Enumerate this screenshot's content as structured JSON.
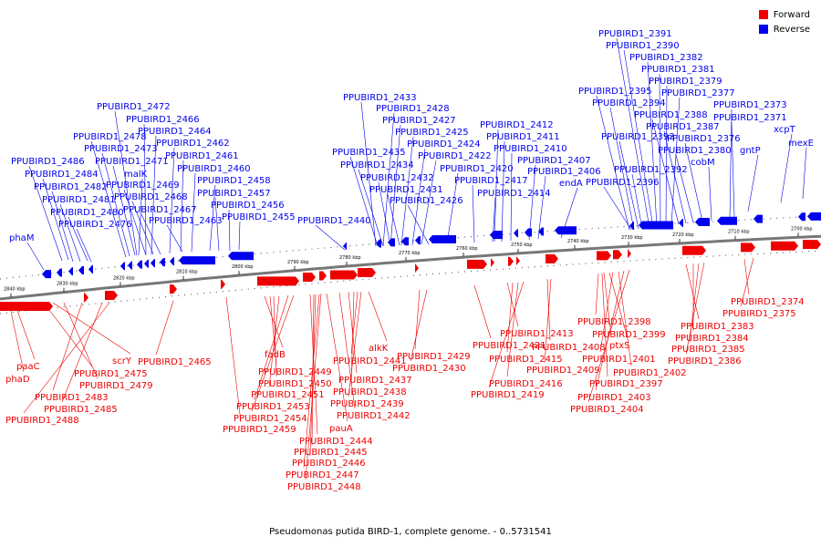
{
  "legend": {
    "forward_label": "Forward",
    "reverse_label": "Reverse",
    "forward_color": "#ee0000",
    "reverse_color": "#0000ee"
  },
  "caption": "Pseudomonas putida BIRD-1, complete genome. - 0..5731541",
  "ticks": [
    "2840 kbp",
    "2830 kbp",
    "2820 kbp",
    "2810 kbp",
    "2800 kbp",
    "2790 kbp",
    "2780 kbp",
    "2770 kbp",
    "2760 kbp",
    "2750 kbp",
    "2740 kbp",
    "2730 kbp",
    "2720 kbp",
    "2710 kbp",
    "2700 kbp"
  ],
  "reverse_genes": [
    "phaM",
    "PPUBIRD1_2486",
    "PPUBIRD1_2484",
    "PPUBIRD1_2482",
    "PPUBIRD1_2481",
    "PPUBIRD1_2480",
    "PPUBIRD1_2476",
    "PPUBIRD1_2478",
    "PPUBIRD1_2473",
    "PPUBIRD1_2471",
    "malK",
    "PPUBIRD1_2469",
    "PPUBIRD1_2468",
    "PPUBIRD1_2467",
    "PPUBIRD1_2472",
    "PPUBIRD1_2466",
    "PPUBIRD1_2464",
    "PPUBIRD1_2462",
    "PPUBIRD1_2461",
    "PPUBIRD1_2460",
    "PPUBIRD1_2458",
    "PPUBIRD1_2457",
    "PPUBIRD1_2456",
    "PPUBIRD1_2455",
    "PPUBIRD1_2463",
    "PPUBIRD1_2440",
    "PPUBIRD1_2433",
    "PPUBIRD1_2428",
    "PPUBIRD1_2427",
    "PPUBIRD1_2425",
    "PPUBIRD1_2424",
    "PPUBIRD1_2422",
    "PPUBIRD1_2435",
    "PPUBIRD1_2434",
    "PPUBIRD1_2432",
    "PPUBIRD1_2431",
    "PPUBIRD1_2426",
    "PPUBIRD1_2420",
    "PPUBIRD1_2417",
    "PPUBIRD1_2414",
    "PPUBIRD1_2412",
    "PPUBIRD1_2411",
    "PPUBIRD1_2410",
    "PPUBIRD1_2407",
    "PPUBIRD1_2406",
    "endA",
    "PPUBIRD1_2395",
    "PPUBIRD1_2394",
    "PPUBIRD1_2393",
    "PPUBIRD1_2392",
    "PPUBIRD1_2396",
    "PPUBIRD1_2391",
    "PPUBIRD1_2390",
    "PPUBIRD1_2382",
    "PPUBIRD1_2381",
    "PPUBIRD1_2379",
    "PPUBIRD1_2377",
    "PPUBIRD1_2388",
    "PPUBIRD1_2387",
    "PPUBIRD1_2376",
    "PPUBIRD1_2380",
    "cobM",
    "PPUBIRD1_2373",
    "PPUBIRD1_2371",
    "gntP",
    "xcpT",
    "mexE"
  ],
  "forward_genes": [
    "paaC",
    "phaD",
    "PPUBIRD1_2475",
    "scrY",
    "PPUBIRD1_2479",
    "PPUBIRD1_2483",
    "PPUBIRD1_2485",
    "PPUBIRD1_2488",
    "PPUBIRD1_2465",
    "fadB",
    "PPUBIRD1_2449",
    "PPUBIRD1_2450",
    "PPUBIRD1_2451",
    "PPUBIRD1_2453",
    "PPUBIRD1_2454",
    "PPUBIRD1_2459",
    "PPUBIRD1_2441",
    "alkK",
    "PPUBIRD1_2437",
    "PPUBIRD1_2438",
    "PPUBIRD1_2439",
    "PPUBIRD1_2442",
    "pauA",
    "PPUBIRD1_2444",
    "PPUBIRD1_2445",
    "PPUBIRD1_2446",
    "PPUBIRD1_2447",
    "PPUBIRD1_2448",
    "PPUBIRD1_2429",
    "PPUBIRD1_2430",
    "PPUBIRD1_2421",
    "PPUBIRD1_2413",
    "PPUBIRD1_2415",
    "PPUBIRD1_2416",
    "PPUBIRD1_2419",
    "PPUBIRD1_2408",
    "PPUBIRD1_2409",
    "PPUBIRD1_2398",
    "PPUBIRD1_2399",
    "ptxS",
    "PPUBIRD1_2401",
    "PPUBIRD1_2402",
    "PPUBIRD1_2397",
    "PPUBIRD1_2403",
    "PPUBIRD1_2404",
    "PPUBIRD1_2374",
    "PPUBIRD1_2375",
    "PPUBIRD1_2383",
    "PPUBIRD1_2384",
    "PPUBIRD1_2385",
    "PPUBIRD1_2386"
  ]
}
